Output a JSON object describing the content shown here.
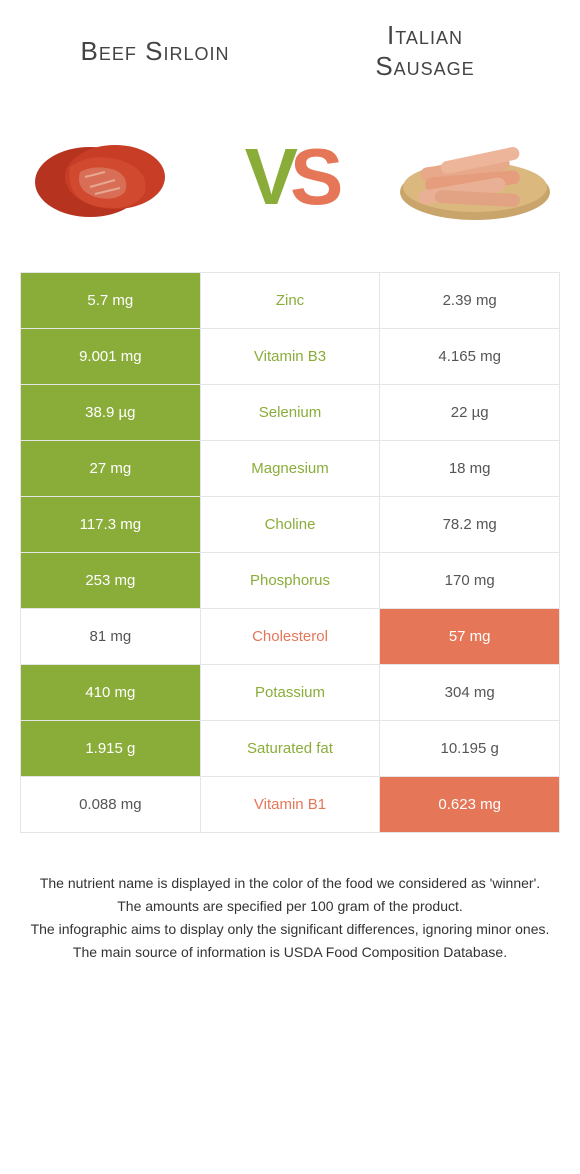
{
  "titles": {
    "left": "Beef Sirloin",
    "right_line1": "Italian",
    "right_line2": "Sausage"
  },
  "vs": {
    "v": "V",
    "s": "S"
  },
  "colors": {
    "green": "#8aad3a",
    "orange": "#e57658",
    "border": "#e5e5e5",
    "bg": "#ffffff",
    "text": "#555"
  },
  "rows": [
    {
      "left": "5.7 mg",
      "mid": "Zinc",
      "right": "2.39 mg",
      "winner": "left"
    },
    {
      "left": "9.001 mg",
      "mid": "Vitamin B3",
      "right": "4.165 mg",
      "winner": "left"
    },
    {
      "left": "38.9 µg",
      "mid": "Selenium",
      "right": "22 µg",
      "winner": "left"
    },
    {
      "left": "27 mg",
      "mid": "Magnesium",
      "right": "18 mg",
      "winner": "left"
    },
    {
      "left": "117.3 mg",
      "mid": "Choline",
      "right": "78.2 mg",
      "winner": "left"
    },
    {
      "left": "253 mg",
      "mid": "Phosphorus",
      "right": "170 mg",
      "winner": "left"
    },
    {
      "left": "81 mg",
      "mid": "Cholesterol",
      "right": "57 mg",
      "winner": "right"
    },
    {
      "left": "410 mg",
      "mid": "Potassium",
      "right": "304 mg",
      "winner": "left"
    },
    {
      "left": "1.915 g",
      "mid": "Saturated fat",
      "right": "10.195 g",
      "winner": "left"
    },
    {
      "left": "0.088 mg",
      "mid": "Vitamin B1",
      "right": "0.623 mg",
      "winner": "right"
    }
  ],
  "footer": [
    "The nutrient name is displayed in the color of the food we considered as 'winner'.",
    "The amounts are specified per 100 gram of the product.",
    "The infographic aims to display only the significant differences, ignoring minor ones.",
    "The main source of information is USDA Food Composition Database."
  ]
}
